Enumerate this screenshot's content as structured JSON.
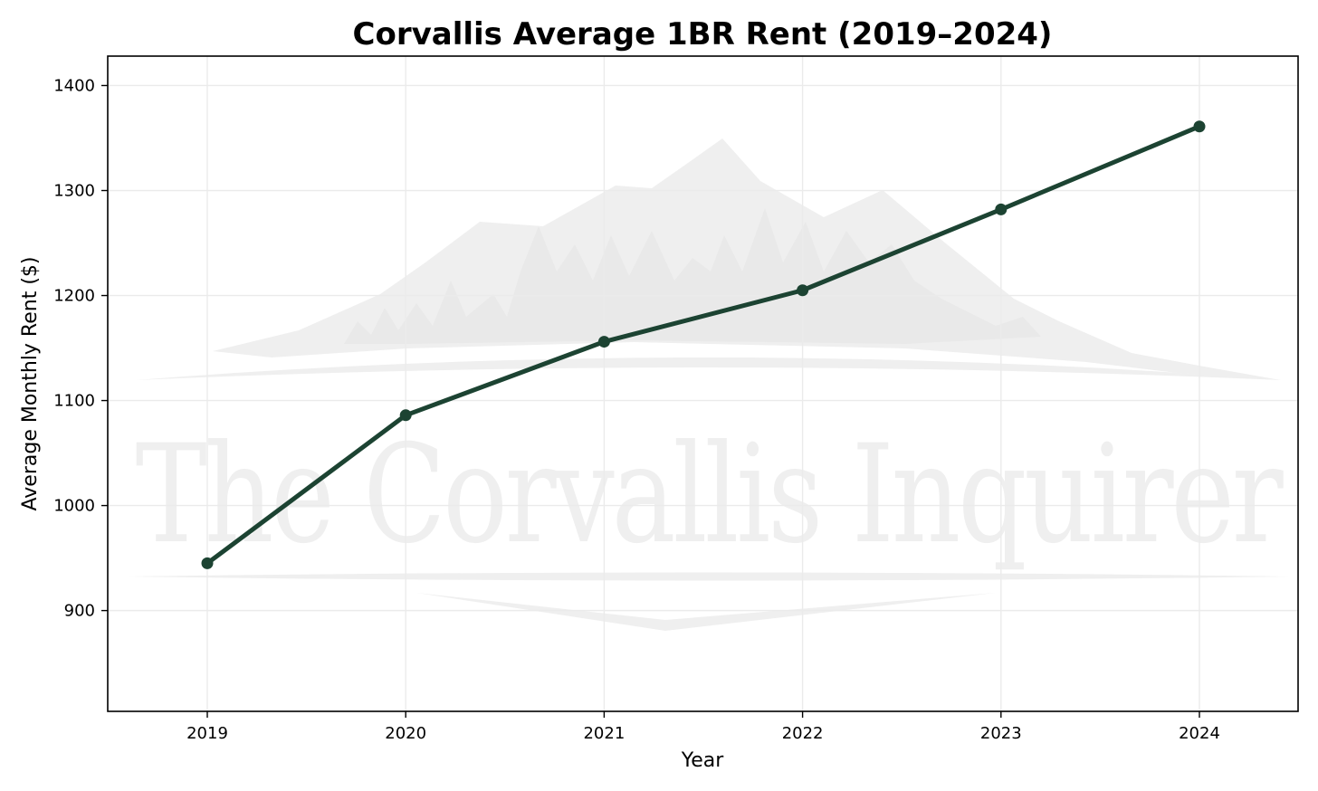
{
  "colors": {
    "line": "#1c4332",
    "grid": "#ebebeb",
    "watermark": "#efefef",
    "axes": "#000000",
    "background": "#ffffff"
  },
  "watermark": {
    "text": "The Corvallis Inquirer"
  },
  "chart_data": {
    "type": "line",
    "title": "Corvallis Average 1BR Rent (2019–2024)",
    "xlabel": "Year",
    "ylabel": "Average Monthly Rent ($)",
    "x": [
      "2019",
      "2020",
      "2021",
      "2022",
      "2023",
      "2024"
    ],
    "series": [
      {
        "values": [
          945,
          1086,
          1156,
          1205,
          1282,
          1361
        ]
      }
    ],
    "ylim": [
      804,
      1428
    ],
    "yticks": [
      900,
      1000,
      1100,
      1200,
      1300,
      1400
    ],
    "grid": true,
    "markers": true,
    "legend": "none"
  }
}
